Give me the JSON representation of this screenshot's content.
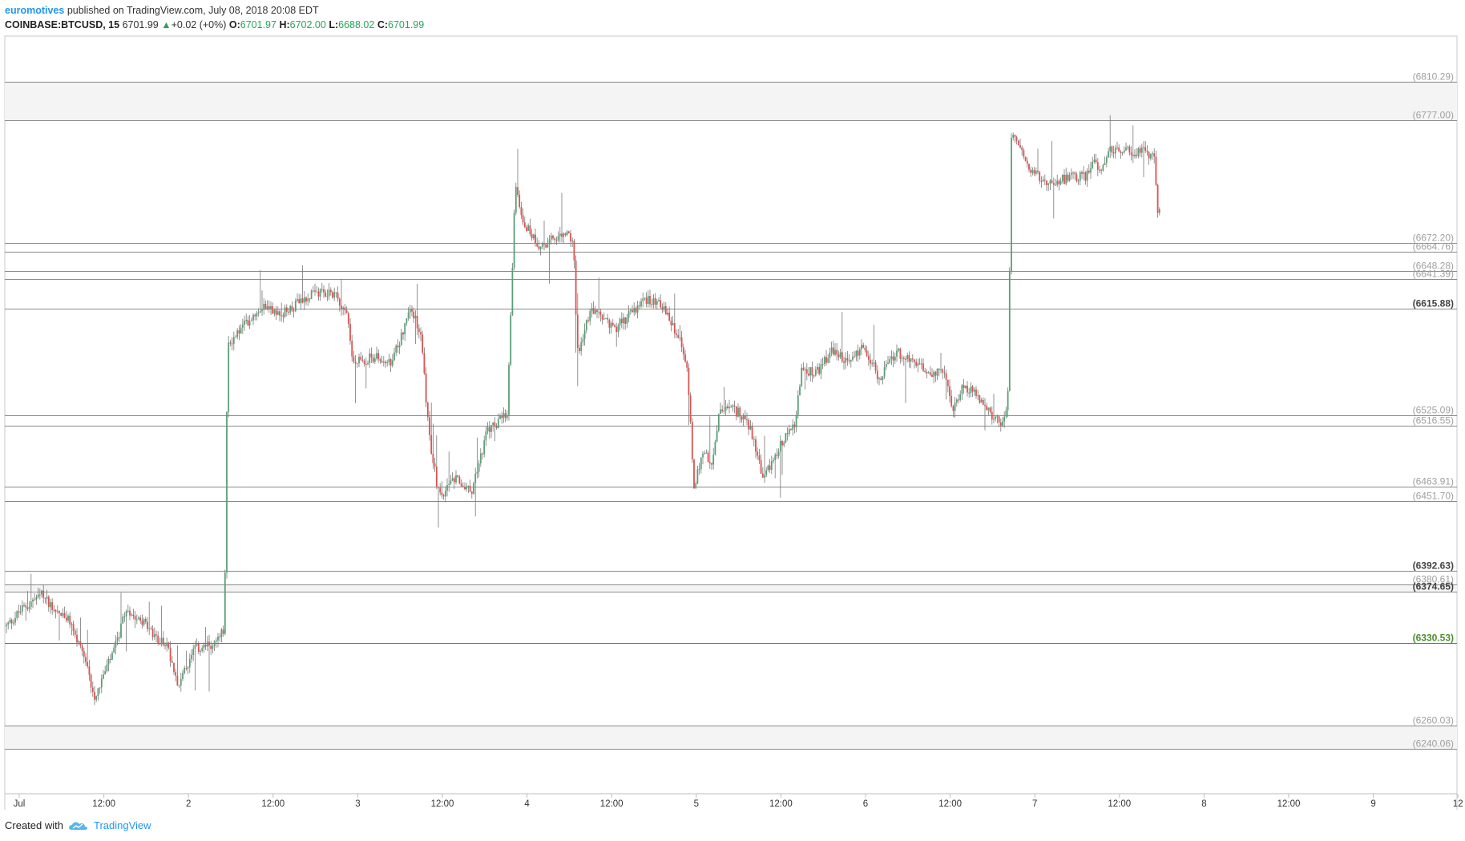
{
  "header": {
    "author": "euromotives",
    "published": "published on TradingView.com, July 08, 2018 20:08 EDT",
    "symbol": "COINBASE:BTCUSD, 15",
    "last": "6701.99",
    "change_arrow": "▲",
    "change": "+0.02 (+0%)",
    "o_label": "O:",
    "o": "6701.97",
    "h_label": "H:",
    "h": "6702.00",
    "l_label": "L:",
    "l": "6688.02",
    "c_label": "C:",
    "c": "6701.99"
  },
  "footer": {
    "created_with": "Created with",
    "brand": "TradingView"
  },
  "colors": {
    "up": "#5a9e77",
    "down": "#d9534f",
    "hline": "#8a8a8a",
    "green_line": "#4a8f2a",
    "band": "#f4f4f4"
  },
  "chart_data": {
    "type": "candlestick",
    "instrument": "COINBASE:BTCUSD",
    "interval": "15",
    "ylim": [
      6202,
      6849
    ],
    "x_ticks": [
      "Jul",
      "12:00",
      "2",
      "12:00",
      "3",
      "12:00",
      "4",
      "12:00",
      "5",
      "12:00",
      "6",
      "12:00",
      "7",
      "12:00",
      "8",
      "12:00",
      "9",
      "12"
    ],
    "horizontal_levels": [
      {
        "label": "(6810.29)",
        "value": 6810.29,
        "bold": false
      },
      {
        "label": "(6777.00)",
        "value": 6777.0,
        "bold": false
      },
      {
        "label": "(6672.20)",
        "value": 6672.2,
        "bold": false
      },
      {
        "label": "(6664.76)",
        "value": 6664.76,
        "bold": false
      },
      {
        "label": "(6648.28)",
        "value": 6648.28,
        "bold": false
      },
      {
        "label": "(6641.39)",
        "value": 6641.39,
        "bold": false
      },
      {
        "label": "(6615.88)",
        "value": 6615.88,
        "bold": true
      },
      {
        "label": "(6525.09)",
        "value": 6525.09,
        "bold": false
      },
      {
        "label": "(6516.55)",
        "value": 6516.55,
        "bold": false
      },
      {
        "label": "(6463.91)",
        "value": 6463.91,
        "bold": false
      },
      {
        "label": "(6451.70)",
        "value": 6451.7,
        "bold": false
      },
      {
        "label": "(6392.63)",
        "value": 6392.63,
        "bold": true
      },
      {
        "label": "(6380.61)",
        "value": 6380.61,
        "bold": false
      },
      {
        "label": "(6374.65)",
        "value": 6374.65,
        "bold": true
      },
      {
        "label": "(6330.53)",
        "value": 6330.53,
        "bold": true,
        "green": true
      },
      {
        "label": "(6260.03)",
        "value": 6260.03,
        "bold": false
      },
      {
        "label": "(6240.06)",
        "value": 6240.06,
        "bold": false
      }
    ],
    "shaded_bands": [
      [
        6777.0,
        6810.29
      ],
      [
        6374.65,
        6380.61
      ],
      [
        6240.06,
        6260.03
      ]
    ],
    "path_keypoints": [
      [
        0,
        6345
      ],
      [
        20,
        6360
      ],
      [
        45,
        6372
      ],
      [
        60,
        6360
      ],
      [
        80,
        6348
      ],
      [
        100,
        6310
      ],
      [
        110,
        6285
      ],
      [
        135,
        6325
      ],
      [
        150,
        6360
      ],
      [
        170,
        6350
      ],
      [
        185,
        6335
      ],
      [
        200,
        6330
      ],
      [
        215,
        6295
      ],
      [
        235,
        6325
      ],
      [
        260,
        6330
      ],
      [
        272,
        6342
      ],
      [
        276,
        6585
      ],
      [
        300,
        6605
      ],
      [
        320,
        6620
      ],
      [
        345,
        6612
      ],
      [
        380,
        6628
      ],
      [
        410,
        6630
      ],
      [
        426,
        6610
      ],
      [
        432,
        6570
      ],
      [
        460,
        6575
      ],
      [
        480,
        6568
      ],
      [
        505,
        6618
      ],
      [
        518,
        6590
      ],
      [
        527,
        6510
      ],
      [
        540,
        6455
      ],
      [
        560,
        6470
      ],
      [
        580,
        6460
      ],
      [
        600,
        6512
      ],
      [
        625,
        6525
      ],
      [
        635,
        6725
      ],
      [
        645,
        6690
      ],
      [
        665,
        6670
      ],
      [
        700,
        6680
      ],
      [
        708,
        6670
      ],
      [
        712,
        6578
      ],
      [
        730,
        6615
      ],
      [
        760,
        6600
      ],
      [
        800,
        6625
      ],
      [
        815,
        6622
      ],
      [
        840,
        6590
      ],
      [
        850,
        6560
      ],
      [
        858,
        6465
      ],
      [
        870,
        6495
      ],
      [
        880,
        6480
      ],
      [
        890,
        6530
      ],
      [
        905,
        6530
      ],
      [
        920,
        6525
      ],
      [
        930,
        6510
      ],
      [
        945,
        6470
      ],
      [
        965,
        6500
      ],
      [
        985,
        6520
      ],
      [
        992,
        6565
      ],
      [
        1010,
        6560
      ],
      [
        1030,
        6580
      ],
      [
        1050,
        6570
      ],
      [
        1070,
        6585
      ],
      [
        1090,
        6555
      ],
      [
        1110,
        6580
      ],
      [
        1130,
        6570
      ],
      [
        1150,
        6562
      ],
      [
        1170,
        6560
      ],
      [
        1180,
        6530
      ],
      [
        1195,
        6550
      ],
      [
        1215,
        6540
      ],
      [
        1235,
        6520
      ],
      [
        1246,
        6520
      ],
      [
        1250,
        6550
      ],
      [
        1254,
        6765
      ],
      [
        1262,
        6760
      ],
      [
        1275,
        6735
      ],
      [
        1295,
        6725
      ],
      [
        1330,
        6728
      ],
      [
        1350,
        6730
      ],
      [
        1355,
        6745
      ],
      [
        1365,
        6735
      ],
      [
        1375,
        6752
      ],
      [
        1400,
        6750
      ],
      [
        1420,
        6750
      ],
      [
        1432,
        6745
      ],
      [
        1436,
        6700
      ],
      [
        1440,
        6702
      ]
    ],
    "candle_step": 2.2
  }
}
